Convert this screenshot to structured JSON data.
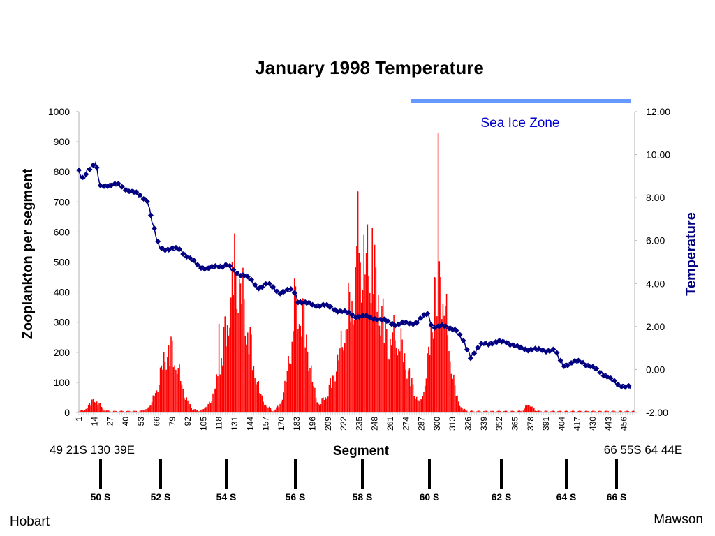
{
  "colors": {
    "bars": "#ff0000",
    "temperature": "#000080",
    "sea_ice_bar": "#6699ff",
    "sea_ice_text": "#0000cc"
  },
  "annotations": {
    "sea_ice_label": "Sea Ice Zone",
    "start_coord": "49 21S 130 39E",
    "end_coord": "66 55S 64 44E",
    "start_place": "Hobart",
    "end_place": "Mawson",
    "latitudes": [
      "50 S",
      "52 S",
      "54 S",
      "56 S",
      "58 S",
      "60 S",
      "62 S",
      "64 S",
      "66 S"
    ]
  },
  "chart_data": {
    "type": "bar+line",
    "title": "January 1998 Temperature",
    "xlabel": "Segment",
    "ylabel_left": "Zooplankton per segment",
    "ylabel_right": "Temperature",
    "xlim": [
      1,
      465
    ],
    "x_tick_labels": [
      "1",
      "14",
      "27",
      "40",
      "53",
      "66",
      "79",
      "92",
      "105",
      "118",
      "131",
      "144",
      "157",
      "170",
      "183",
      "196",
      "209",
      "222",
      "235",
      "248",
      "261",
      "274",
      "287",
      "300",
      "313",
      "326",
      "339",
      "352",
      "365",
      "378",
      "391",
      "404",
      "417",
      "430",
      "443",
      "456"
    ],
    "ylim_left": [
      0,
      1000
    ],
    "y_ticks_left": [
      "0",
      "100",
      "200",
      "300",
      "400",
      "500",
      "600",
      "700",
      "800",
      "900",
      "1000"
    ],
    "ylim_right": [
      -2,
      12
    ],
    "y_ticks_right": [
      "-2.00",
      "0.00",
      "2.00",
      "4.00",
      "6.00",
      "8.00",
      "10.00",
      "12.00"
    ],
    "grid": false,
    "zooplankton_peaks": [
      {
        "x": 14,
        "y": 50,
        "width": 6
      },
      {
        "x": 77,
        "y": 270,
        "width": 11
      },
      {
        "x": 133,
        "y": 560,
        "width": 14
      },
      {
        "x": 150,
        "y": 80,
        "width": 6
      },
      {
        "x": 185,
        "y": 460,
        "width": 10
      },
      {
        "x": 240,
        "y": 650,
        "width": 22
      },
      {
        "x": 265,
        "y": 330,
        "width": 14
      },
      {
        "x": 302,
        "y": 560,
        "width": 10
      },
      {
        "x": 377,
        "y": 30,
        "width": 4
      }
    ],
    "zooplankton_spikes": [
      {
        "x": 118,
        "y": 295
      },
      {
        "x": 131,
        "y": 595
      },
      {
        "x": 181,
        "y": 445
      },
      {
        "x": 234,
        "y": 735
      },
      {
        "x": 239,
        "y": 590
      },
      {
        "x": 246,
        "y": 615
      },
      {
        "x": 298,
        "y": 450
      },
      {
        "x": 301,
        "y": 930
      },
      {
        "x": 303,
        "y": 450
      }
    ],
    "temperature_series": {
      "name": "Temperature",
      "points": [
        [
          1,
          9.2
        ],
        [
          5,
          8.8
        ],
        [
          8,
          9.3
        ],
        [
          15,
          9.6
        ],
        [
          19,
          8.5
        ],
        [
          25,
          8.6
        ],
        [
          33,
          8.6
        ],
        [
          45,
          8.3
        ],
        [
          58,
          7.9
        ],
        [
          63,
          6.7
        ],
        [
          68,
          5.7
        ],
        [
          75,
          5.6
        ],
        [
          85,
          5.6
        ],
        [
          93,
          5.2
        ],
        [
          101,
          4.8
        ],
        [
          110,
          4.7
        ],
        [
          125,
          4.9
        ],
        [
          131,
          4.5
        ],
        [
          140,
          4.4
        ],
        [
          150,
          3.8
        ],
        [
          158,
          4.0
        ],
        [
          168,
          3.6
        ],
        [
          180,
          3.7
        ],
        [
          184,
          3.2
        ],
        [
          195,
          3.0
        ],
        [
          205,
          3.0
        ],
        [
          215,
          2.8
        ],
        [
          232,
          2.5
        ],
        [
          248,
          2.4
        ],
        [
          266,
          2.1
        ],
        [
          283,
          2.2
        ],
        [
          292,
          2.6
        ],
        [
          296,
          2.0
        ],
        [
          308,
          2.0
        ],
        [
          315,
          1.9
        ],
        [
          323,
          1.2
        ],
        [
          328,
          0.6
        ],
        [
          338,
          1.2
        ],
        [
          358,
          1.3
        ],
        [
          368,
          1.0
        ],
        [
          385,
          0.9
        ],
        [
          398,
          0.9
        ],
        [
          405,
          0.2
        ],
        [
          420,
          0.4
        ],
        [
          432,
          0.0
        ],
        [
          442,
          -0.3
        ],
        [
          450,
          -0.7
        ],
        [
          462,
          -0.8
        ]
      ]
    }
  }
}
